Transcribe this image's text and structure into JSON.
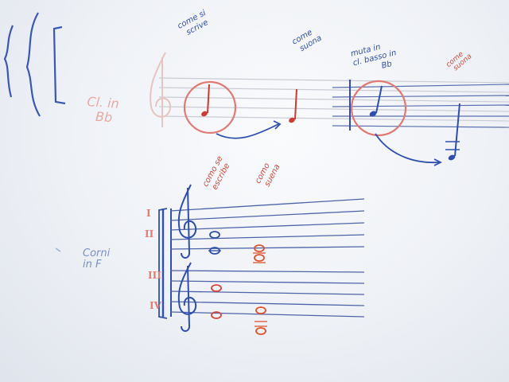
{
  "annotations": {
    "come_si_scrive": [
      "come si",
      "scrive"
    ],
    "come_suona": [
      "come",
      "suona"
    ],
    "muta_in": [
      "muta in",
      "cl. basso in",
      "Bb"
    ],
    "come_suona_right": [
      "come",
      "suona"
    ],
    "cl_in_bb": [
      "Cl. in",
      "Bb"
    ],
    "como_se_escribe": [
      "como se",
      "escribe"
    ],
    "como_suena": [
      "como",
      "suena"
    ],
    "corni_in_f": [
      "Corni",
      "in F"
    ]
  },
  "roman_numerals": [
    "I",
    "II",
    "III",
    "IV"
  ],
  "colors": {
    "blue_ink": "#2f4fb0",
    "red_ink": "#d5473a",
    "orange_ink": "#e0522e",
    "pale_red_ink": "#e6a9a4",
    "staff_line": "#b9bec8",
    "board": "#f2f4f8"
  }
}
